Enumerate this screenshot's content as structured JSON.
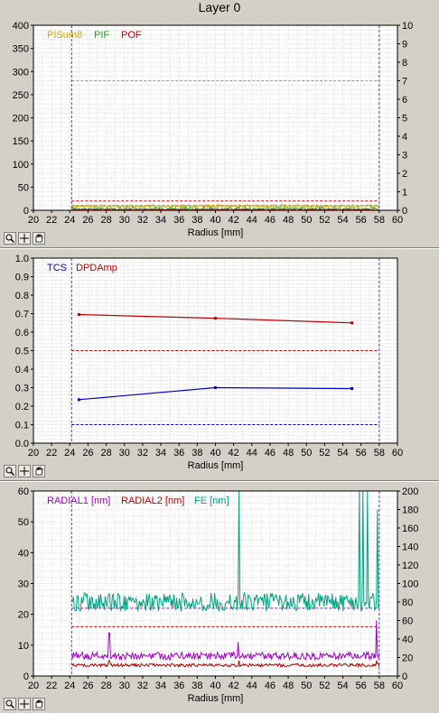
{
  "window": {
    "title": "Layer 0"
  },
  "colors": {
    "background": "#d4d0c8",
    "plot_bg": "#ffffff",
    "grid": "#c8c8c8",
    "limit_marker": "#3c3cff"
  },
  "toolbar_icons": [
    "zoom-icon",
    "crosshair-icon",
    "hand-pan-icon"
  ],
  "chart_data": [
    {
      "type": "line",
      "xlabel": "Radius [mm]",
      "xlim": [
        20,
        60
      ],
      "xticks": [
        20,
        22,
        24,
        26,
        28,
        30,
        32,
        34,
        36,
        38,
        40,
        42,
        44,
        46,
        48,
        50,
        52,
        54,
        56,
        58,
        60
      ],
      "ylim": [
        0,
        400
      ],
      "yticks": [
        0,
        50,
        100,
        150,
        200,
        250,
        300,
        350,
        400
      ],
      "y2lim": [
        0,
        10
      ],
      "y2ticks": [
        0,
        1,
        2,
        3,
        4,
        5,
        6,
        7,
        8,
        9,
        10
      ],
      "grid": true,
      "legend_position": "top-left",
      "vertical_markers": [
        24.2,
        58
      ],
      "series": [
        {
          "name": "PISum8",
          "color": "#d4a000",
          "axis": "left",
          "style": "noise",
          "mean": 9,
          "spread": 3
        },
        {
          "name": "PIF",
          "color": "#20a020",
          "axis": "left",
          "style": "noise",
          "mean": 3,
          "spread": 3
        },
        {
          "name": "POF",
          "color": "#c00000",
          "axis": "left",
          "style": "noise",
          "mean": 1,
          "spread": 1
        }
      ],
      "thresholds": [
        {
          "y": 280,
          "color": "#d4a000"
        },
        {
          "y": 20,
          "color": "#c00000"
        },
        {
          "y": 10,
          "color": "#20a020"
        }
      ]
    },
    {
      "type": "line",
      "xlabel": "Radius [mm]",
      "xlim": [
        20,
        60
      ],
      "xticks": [
        20,
        22,
        24,
        26,
        28,
        30,
        32,
        34,
        36,
        38,
        40,
        42,
        44,
        46,
        48,
        50,
        52,
        54,
        56,
        58,
        60
      ],
      "ylim": [
        0,
        1.0
      ],
      "yticks": [
        0.0,
        0.1,
        0.2,
        0.3,
        0.4,
        0.5,
        0.6,
        0.7,
        0.8,
        0.9,
        1.0
      ],
      "ytick_labels": [
        "0.0",
        "0.1",
        "0.2",
        "0.3",
        "0.4",
        "0.5",
        "0.6",
        "0.7",
        "0.8",
        "0.9",
        "1.0"
      ],
      "grid": true,
      "legend_position": "top-left",
      "vertical_markers": [
        24.2,
        58
      ],
      "series": [
        {
          "name": "TCS",
          "color": "#0000d0",
          "axis": "left",
          "style": "points",
          "x": [
            25,
            40,
            55
          ],
          "y": [
            0.235,
            0.3,
            0.295
          ]
        },
        {
          "name": "DPDAmp",
          "color": "#c00000",
          "axis": "left",
          "style": "points",
          "x": [
            25,
            40,
            55
          ],
          "y": [
            0.695,
            0.675,
            0.65
          ]
        }
      ],
      "thresholds": [
        {
          "y": 0.5,
          "color": "#c00000"
        },
        {
          "y": 0.1,
          "color": "#0000d0"
        }
      ]
    },
    {
      "type": "line",
      "xlabel": "Radius [mm]",
      "xlim": [
        20,
        60
      ],
      "xticks": [
        20,
        22,
        24,
        26,
        28,
        30,
        32,
        34,
        36,
        38,
        40,
        42,
        44,
        46,
        48,
        50,
        52,
        54,
        56,
        58,
        60
      ],
      "ylim": [
        0,
        60
      ],
      "yticks": [
        0,
        10,
        20,
        30,
        40,
        50,
        60
      ],
      "y2lim": [
        0,
        200
      ],
      "y2ticks": [
        0,
        20,
        40,
        60,
        80,
        100,
        120,
        140,
        160,
        180,
        200
      ],
      "grid": true,
      "legend_position": "top-left",
      "vertical_markers": [
        24.2,
        58
      ],
      "series": [
        {
          "name": "RADIAL1 [nm]",
          "color": "#a000c0",
          "axis": "left",
          "style": "noise",
          "mean": 6.5,
          "spread": 1.2,
          "spikes": [
            [
              28.3,
              14
            ],
            [
              42.5,
              11
            ],
            [
              57.7,
              18
            ]
          ]
        },
        {
          "name": "RADIAL2 [nm]",
          "color": "#b00000",
          "axis": "left",
          "style": "noise",
          "mean": 3.5,
          "spread": 0.5,
          "spikes": [
            [
              28.3,
              5
            ],
            [
              42.6,
              5
            ],
            [
              57.7,
              5
            ]
          ]
        },
        {
          "name": "FE [nm]",
          "color": "#00a080",
          "axis": "right",
          "style": "noise",
          "mean": 80,
          "spread": 10,
          "spikes": [
            [
              42.6,
              200
            ],
            [
              55.8,
              200
            ],
            [
              56.2,
              200
            ],
            [
              56.7,
              200
            ],
            [
              57.8,
              180
            ],
            [
              58.2,
              120
            ]
          ]
        }
      ],
      "thresholds": [
        {
          "y": 22,
          "color": "#a000c0"
        },
        {
          "y": 16,
          "color": "#b00000"
        }
      ]
    }
  ]
}
